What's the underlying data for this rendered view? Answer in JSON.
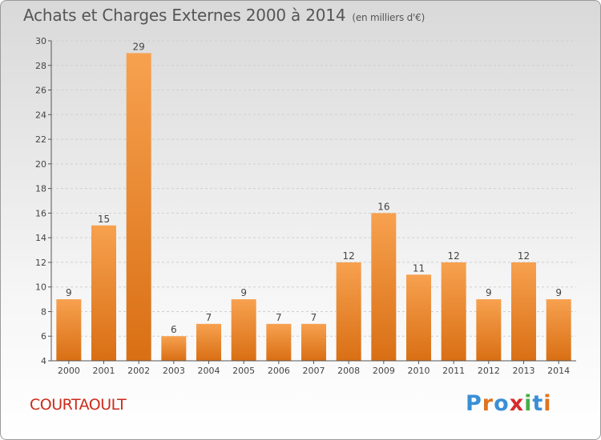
{
  "header": {
    "title": "Achats et Charges Externes 2000 à 2014",
    "unit": "(en milliers d'€)"
  },
  "footer": {
    "commune": "COURTAOULT",
    "logo_text": "Proxiti",
    "logo_colors": [
      "#3a8fd6",
      "#e0731f",
      "#3a8fd6",
      "#d62b2b",
      "#46b04a",
      "#3a8fd6",
      "#e0731f"
    ]
  },
  "colors": {
    "bar_top": "#f7a14f",
    "bar_bottom": "#d96f14",
    "axis": "#555555",
    "grid": "#cfcfcf",
    "text": "#444444"
  },
  "chart_data": {
    "type": "bar",
    "title": "Achats et Charges Externes 2000 à 2014",
    "subtitle": "(en milliers d'€)",
    "xlabel": "",
    "ylabel": "",
    "categories": [
      "2000",
      "2001",
      "2002",
      "2003",
      "2004",
      "2005",
      "2006",
      "2007",
      "2008",
      "2009",
      "2010",
      "2011",
      "2012",
      "2013",
      "2014"
    ],
    "values": [
      9,
      15,
      29,
      6,
      7,
      9,
      7,
      7,
      12,
      16,
      11,
      12,
      9,
      12,
      9
    ],
    "ylim": [
      4,
      30
    ],
    "yticks": [
      4,
      6,
      8,
      10,
      12,
      14,
      16,
      18,
      20,
      22,
      24,
      26,
      28,
      30
    ],
    "grid": true,
    "legend": "none"
  }
}
